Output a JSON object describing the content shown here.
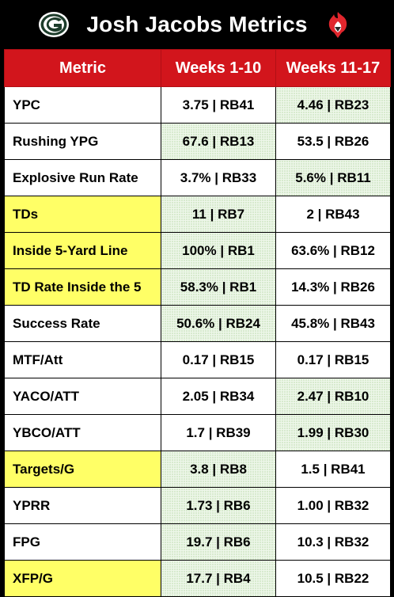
{
  "header": {
    "title": "Josh Jacobs Metrics",
    "left_logo": "packers-g-logo",
    "right_logo": "fire-shield-logo"
  },
  "colors": {
    "header_bg": "#000000",
    "column_header_bg": "#d2151c",
    "highlight_metric": "#ffff66",
    "better_value_bg": "#eef7ea"
  },
  "table": {
    "columns": [
      "Metric",
      "Weeks 1-10",
      "Weeks 11-17"
    ],
    "rows": [
      {
        "metric": "YPC",
        "w1_10": "3.75 | RB41",
        "w11_17": "4.46 | RB23",
        "highlight": false,
        "better": "w11_17"
      },
      {
        "metric": "Rushing YPG",
        "w1_10": "67.6 | RB13",
        "w11_17": "53.5 | RB26",
        "highlight": false,
        "better": "w1_10"
      },
      {
        "metric": "Explosive Run Rate",
        "w1_10": "3.7% | RB33",
        "w11_17": "5.6% | RB11",
        "highlight": false,
        "better": "w11_17"
      },
      {
        "metric": "TDs",
        "w1_10": "11 | RB7",
        "w11_17": "2 | RB43",
        "highlight": true,
        "better": "w1_10"
      },
      {
        "metric": "Inside 5-Yard Line",
        "w1_10": "100% | RB1",
        "w11_17": "63.6% | RB12",
        "highlight": true,
        "better": "w1_10"
      },
      {
        "metric": "TD Rate Inside the 5",
        "w1_10": "58.3% | RB1",
        "w11_17": "14.3% | RB26",
        "highlight": true,
        "better": "w1_10"
      },
      {
        "metric": "Success Rate",
        "w1_10": "50.6% | RB24",
        "w11_17": "45.8% | RB43",
        "highlight": false,
        "better": "w1_10"
      },
      {
        "metric": "MTF/Att",
        "w1_10": "0.17 | RB15",
        "w11_17": "0.17 | RB15",
        "highlight": false,
        "better": "none"
      },
      {
        "metric": "YACO/ATT",
        "w1_10": "2.05 | RB34",
        "w11_17": "2.47 | RB10",
        "highlight": false,
        "better": "w11_17"
      },
      {
        "metric": "YBCO/ATT",
        "w1_10": "1.7 | RB39",
        "w11_17": "1.99 | RB30",
        "highlight": false,
        "better": "w11_17"
      },
      {
        "metric": "Targets/G",
        "w1_10": "3.8 | RB8",
        "w11_17": "1.5 | RB41",
        "highlight": true,
        "better": "w1_10"
      },
      {
        "metric": "YPRR",
        "w1_10": "1.73 | RB6",
        "w11_17": "1.00 | RB32",
        "highlight": false,
        "better": "w1_10"
      },
      {
        "metric": "FPG",
        "w1_10": "19.7 | RB6",
        "w11_17": "10.3 | RB32",
        "highlight": false,
        "better": "w1_10"
      },
      {
        "metric": "XFP/G",
        "w1_10": "17.7 | RB4",
        "w11_17": "10.5 | RB22",
        "highlight": true,
        "better": "w1_10"
      }
    ]
  }
}
